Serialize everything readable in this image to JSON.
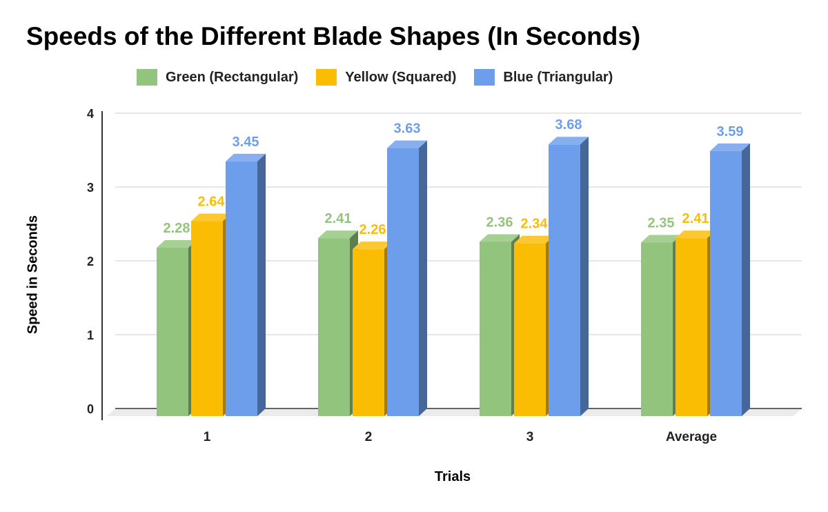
{
  "chart_data": {
    "type": "bar",
    "title": "Speeds of the Different Blade Shapes (In Seconds)",
    "xlabel": "Trials",
    "ylabel": "Speed in Seconds",
    "categories": [
      "1",
      "2",
      "3",
      "Average"
    ],
    "ylim": [
      0,
      4
    ],
    "yticks": [
      "0",
      "1",
      "2",
      "3",
      "4"
    ],
    "grid": true,
    "legend_position": "top",
    "series": [
      {
        "name": "Green (Rectangular)",
        "values": [
          2.28,
          2.41,
          2.36,
          2.35
        ],
        "labels": [
          "2.28",
          "2.41",
          "2.36",
          "2.35"
        ],
        "color": "#93c47d",
        "label_color": "#93c47d"
      },
      {
        "name": "Yellow (Squared)",
        "values": [
          2.64,
          2.26,
          2.34,
          2.41
        ],
        "labels": [
          "2.64",
          "2.26",
          "2.34",
          "2.41"
        ],
        "color": "#fbbc04",
        "label_color": "#fbbc04"
      },
      {
        "name": "Blue (Triangular)",
        "values": [
          3.45,
          3.63,
          3.68,
          3.59
        ],
        "labels": [
          "3.45",
          "3.63",
          "3.68",
          "3.59"
        ],
        "color": "#6d9eeb",
        "label_color": "#6d9eeb"
      }
    ]
  }
}
